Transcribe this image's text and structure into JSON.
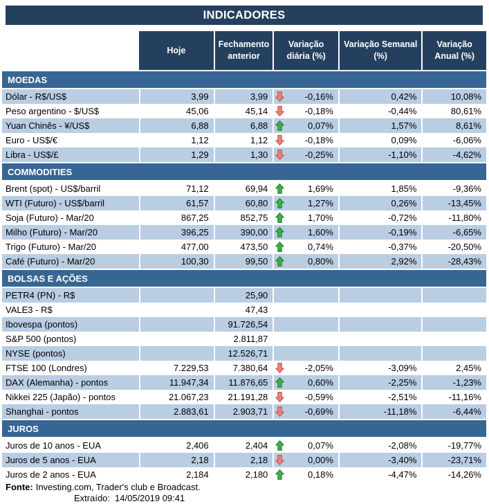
{
  "title": "INDICADORES",
  "columns": [
    "Hoje",
    "Fechamento anterior",
    "Variação diária (%)",
    "Variação Semanal (%)",
    "Variação Anual (%)"
  ],
  "colors": {
    "header_bg": "#25405E",
    "section_bg": "#376694",
    "band_row_bg": "#B9CDE3",
    "arrow_up_fill": "#3FAE49",
    "arrow_up_border": "#1E7A28",
    "arrow_down_fill": "#E8837B",
    "arrow_down_border": "#BE4B48",
    "header_text": "#FFFFFF",
    "body_text": "#000000"
  },
  "sections": [
    {
      "name": "MOEDAS",
      "rows": [
        {
          "label": "Dólar - R$/US$",
          "hoje": "3,99",
          "fechamento": "3,99",
          "arrow": "down",
          "diaria": "-0,16%",
          "semanal": "0,42%",
          "anual": "10,08%",
          "band": true
        },
        {
          "label": "Peso argentino - $/US$",
          "hoje": "45,06",
          "fechamento": "45,14",
          "arrow": "down",
          "diaria": "-0,18%",
          "semanal": "-0,44%",
          "anual": "80,61%",
          "band": false
        },
        {
          "label": "Yuan Chinês - ¥/US$",
          "hoje": "6,88",
          "fechamento": "6,88",
          "arrow": "up",
          "diaria": "0,07%",
          "semanal": "1,57%",
          "anual": "8,61%",
          "band": true
        },
        {
          "label": "Euro - US$/€",
          "hoje": "1,12",
          "fechamento": "1,12",
          "arrow": "down",
          "diaria": "-0,18%",
          "semanal": "0,09%",
          "anual": "-6,06%",
          "band": false
        },
        {
          "label": "Libra - US$/£",
          "hoje": "1,29",
          "fechamento": "1,30",
          "arrow": "down",
          "diaria": "-0,25%",
          "semanal": "-1,10%",
          "anual": "-4,62%",
          "band": true
        }
      ]
    },
    {
      "name": "COMMODITIES",
      "rows": [
        {
          "label": "Brent (spot) - US$/barril",
          "hoje": "71,12",
          "fechamento": "69,94",
          "arrow": "up",
          "diaria": "1,69%",
          "semanal": "1,85%",
          "anual": "-9,36%",
          "band": false
        },
        {
          "label": "WTI (Futuro) - US$/barril",
          "hoje": "61,57",
          "fechamento": "60,80",
          "arrow": "up",
          "diaria": "1,27%",
          "semanal": "0,26%",
          "anual": "-13,45%",
          "band": true
        },
        {
          "label": "Soja (Futuro) - Mar/20",
          "hoje": "867,25",
          "fechamento": "852,75",
          "arrow": "up",
          "diaria": "1,70%",
          "semanal": "-0,72%",
          "anual": "-11,80%",
          "band": false
        },
        {
          "label": "Milho (Futuro) - Mar/20",
          "hoje": "396,25",
          "fechamento": "390,00",
          "arrow": "up",
          "diaria": "1,60%",
          "semanal": "-0,19%",
          "anual": "-6,65%",
          "band": true
        },
        {
          "label": "Trigo (Futuro) - Mar/20",
          "hoje": "477,00",
          "fechamento": "473,50",
          "arrow": "up",
          "diaria": "0,74%",
          "semanal": "-0,37%",
          "anual": "-20,50%",
          "band": false
        },
        {
          "label": "Café (Futuro) - Mar/20",
          "hoje": "100,30",
          "fechamento": "99,50",
          "arrow": "up",
          "diaria": "0,80%",
          "semanal": "2,92%",
          "anual": "-28,43%",
          "band": true
        }
      ]
    },
    {
      "name": "BOLSAS E AÇÕES",
      "rows": [
        {
          "label": "PETR4 (PN) - R$",
          "hoje": "",
          "fechamento": "25,90",
          "arrow": "",
          "diaria": "",
          "semanal": "",
          "anual": "",
          "band": true
        },
        {
          "label": "VALE3 - R$",
          "hoje": "",
          "fechamento": "47,43",
          "arrow": "",
          "diaria": "",
          "semanal": "",
          "anual": "",
          "band": false
        },
        {
          "label": "Ibovespa (pontos)",
          "hoje": "",
          "fechamento": "91.726,54",
          "arrow": "",
          "diaria": "",
          "semanal": "",
          "anual": "",
          "band": true
        },
        {
          "label": "S&P 500 (pontos)",
          "hoje": "",
          "fechamento": "2.811,87",
          "arrow": "",
          "diaria": "",
          "semanal": "",
          "anual": "",
          "band": false
        },
        {
          "label": "NYSE (pontos)",
          "hoje": "",
          "fechamento": "12.526,71",
          "arrow": "",
          "diaria": "",
          "semanal": "",
          "anual": "",
          "band": true
        },
        {
          "label": "FTSE 100 (Londres)",
          "hoje": "7.229,53",
          "fechamento": "7.380,64",
          "arrow": "down",
          "diaria": "-2,05%",
          "semanal": "-3,09%",
          "anual": "2,45%",
          "band": false
        },
        {
          "label": "DAX (Alemanha) - pontos",
          "hoje": "11.947,34",
          "fechamento": "11.876,65",
          "arrow": "up",
          "diaria": "0,60%",
          "semanal": "-2,25%",
          "anual": "-1,23%",
          "band": true
        },
        {
          "label": "Nikkei 225 (Japão) - pontos",
          "hoje": "21.067,23",
          "fechamento": "21.191,28",
          "arrow": "down",
          "diaria": "-0,59%",
          "semanal": "-2,51%",
          "anual": "-11,16%",
          "band": false
        },
        {
          "label": "Shanghai - pontos",
          "hoje": "2.883,61",
          "fechamento": "2.903,71",
          "arrow": "down",
          "diaria": "-0,69%",
          "semanal": "-11,18%",
          "anual": "-6,44%",
          "band": true
        }
      ]
    },
    {
      "name": "JUROS",
      "rows": [
        {
          "label": "Juros de 10 anos - EUA",
          "hoje": "2,406",
          "fechamento": "2,404",
          "arrow": "up",
          "diaria": "0,07%",
          "semanal": "-2,08%",
          "anual": "-19,77%",
          "band": false
        },
        {
          "label": "Juros de 5 anos - EUA",
          "hoje": "2,18",
          "fechamento": "2,18",
          "arrow": "down",
          "diaria": "0,00%",
          "semanal": "-3,40%",
          "anual": "-23,71%",
          "band": true
        },
        {
          "label": "Juros de 2 anos - EUA",
          "hoje": "2,184",
          "fechamento": "2,180",
          "arrow": "up",
          "diaria": "0,18%",
          "semanal": "-4,47%",
          "anual": "-14,26%",
          "band": false
        }
      ]
    }
  ],
  "footer": {
    "fonte_label": "Fonte:",
    "fonte_text": "Investing.com, Trader's club e Broadcast.",
    "extraido_label": "Extraído:",
    "extraido_value": "14/05/2019 09:41"
  }
}
